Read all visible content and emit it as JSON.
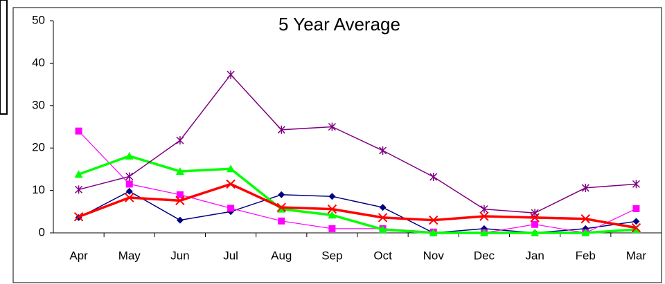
{
  "chart_data": {
    "type": "line",
    "title": "5 Year Average",
    "categories": [
      "Apr",
      "May",
      "Jun",
      "Jul",
      "Aug",
      "Sep",
      "Oct",
      "Nov",
      "Dec",
      "Jan",
      "Feb",
      "Mar"
    ],
    "series": [
      {
        "color": "#000080",
        "marker": "diamond",
        "values": [
          3.6,
          9.8,
          3,
          5,
          9,
          8.6,
          6,
          0,
          1,
          0,
          1,
          2.7
        ]
      },
      {
        "color": "#ff00ff",
        "marker": "square",
        "values": [
          24,
          11.5,
          9,
          5.8,
          2.8,
          1,
          1,
          0.2,
          0,
          2,
          0,
          5.7
        ]
      },
      {
        "color": "#00ff00",
        "marker": "triangle",
        "values": [
          13.8,
          18.1,
          14.5,
          15.1,
          5.6,
          4.2,
          0.8,
          0,
          0,
          0,
          0,
          0.8
        ]
      },
      {
        "color": "#ff0000",
        "marker": "x",
        "values": [
          3.8,
          8.3,
          7.6,
          11.5,
          6,
          5.6,
          3.6,
          3,
          3.9,
          3.6,
          3.3,
          1.2
        ]
      },
      {
        "color": "#800080",
        "marker": "asterisk",
        "values": [
          10.2,
          13.3,
          21.8,
          37.3,
          24.3,
          25,
          19.4,
          13.2,
          5.6,
          4.7,
          10.6,
          11.5
        ]
      }
    ],
    "ylim": [
      0,
      50
    ],
    "yticks": [
      0,
      10,
      20,
      30,
      40,
      50
    ],
    "grid": false
  }
}
